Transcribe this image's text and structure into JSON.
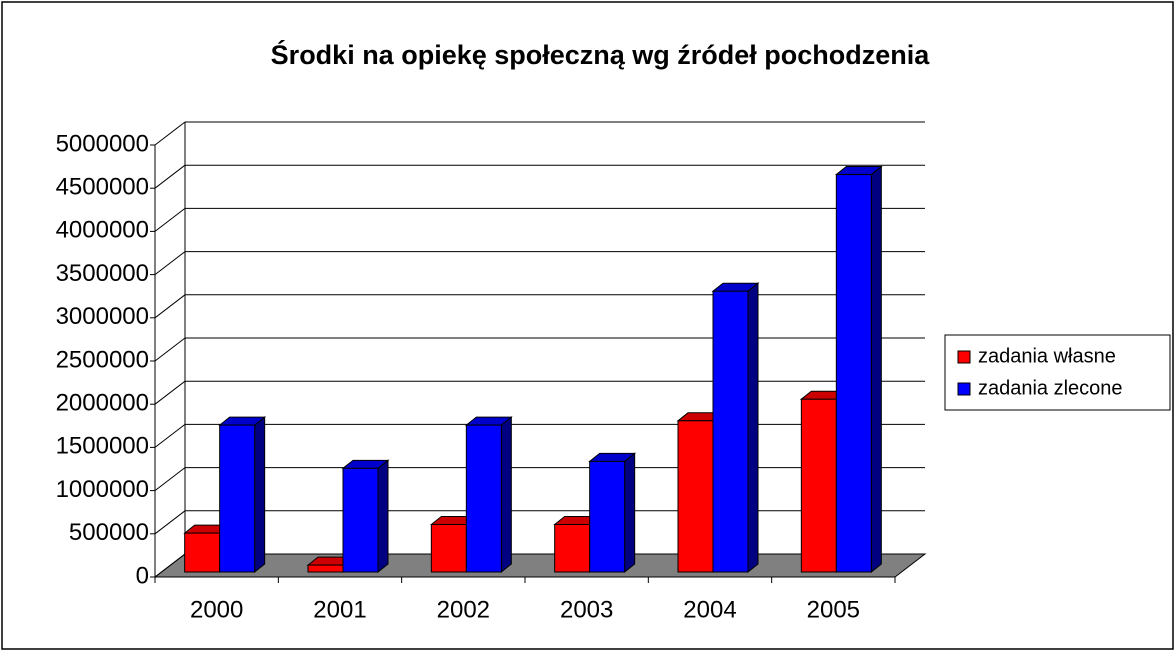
{
  "chart_data": {
    "type": "bar3d",
    "title": "Środki na opiekę społeczną wg źródeł pochodzenia",
    "categories": [
      "2000",
      "2001",
      "2002",
      "2003",
      "2004",
      "2005"
    ],
    "series": [
      {
        "name": "zadania własne",
        "color": "#ff0000",
        "values": [
          450000,
          80000,
          550000,
          550000,
          1750000,
          2000000
        ]
      },
      {
        "name": "zadania zlecone",
        "color": "#0000ff",
        "values": [
          1700000,
          1200000,
          1700000,
          1280000,
          3250000,
          4600000
        ]
      }
    ],
    "ylim": [
      0,
      5000000
    ],
    "yticks": [
      0,
      500000,
      1000000,
      1500000,
      2000000,
      2500000,
      3000000,
      3500000,
      4000000,
      4500000,
      5000000
    ],
    "grid": true,
    "legend": "right"
  }
}
